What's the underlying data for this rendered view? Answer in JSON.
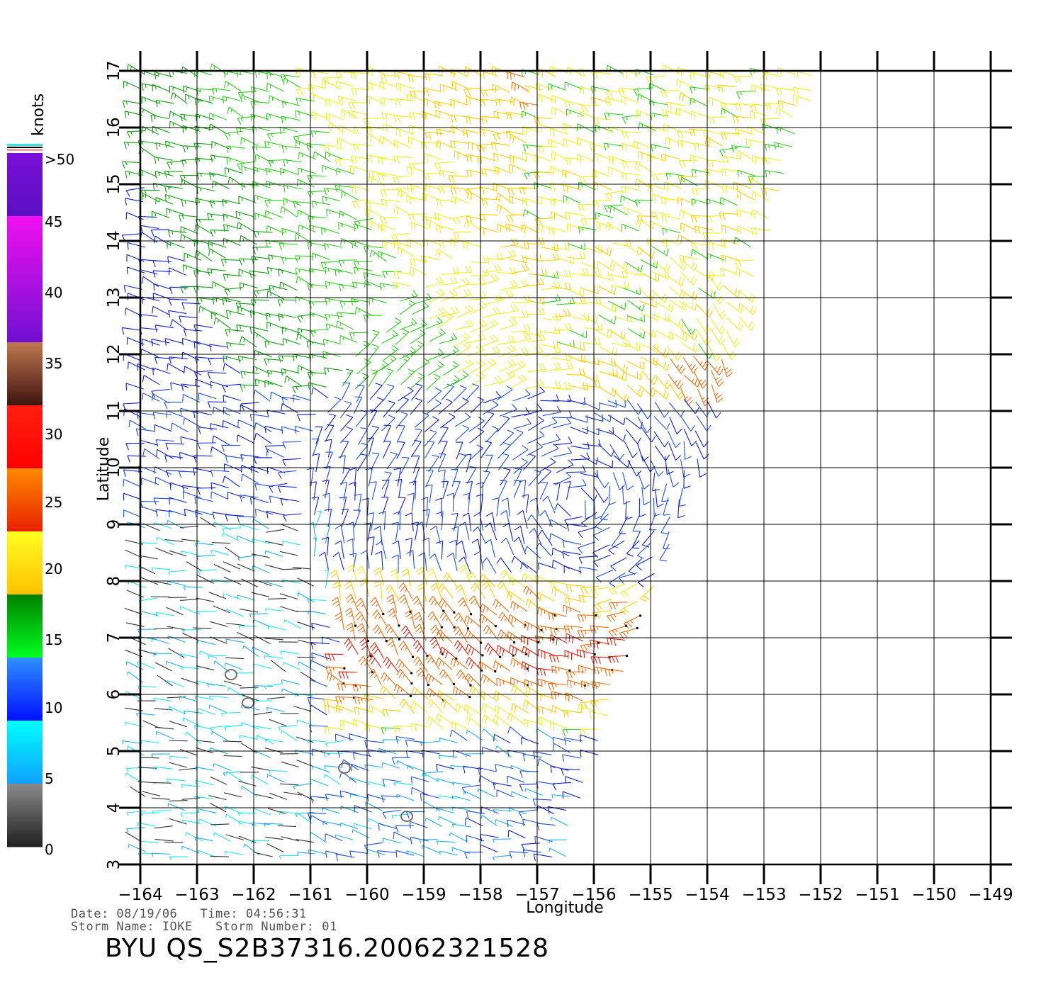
{
  "colorbar": {
    "unit_label": "knots",
    "labels": [
      ">50",
      "45",
      "40",
      "35",
      "30",
      "25",
      "20",
      "15",
      "10",
      "5",
      "0"
    ],
    "bands": [
      {
        "from": 50,
        "to": 55,
        "colors": [
          "#7a10d8",
          "#5a10c0"
        ]
      },
      {
        "from": 40,
        "to": 50,
        "colors": [
          "#f010f0",
          "#7010d0"
        ]
      },
      {
        "from": 35,
        "to": 40,
        "colors": [
          "#c07850",
          "#401410"
        ]
      },
      {
        "from": 30,
        "to": 35,
        "colors": [
          "#ff2010",
          "#ff0000"
        ]
      },
      {
        "from": 25,
        "to": 30,
        "colors": [
          "#ff8a00",
          "#e82000"
        ]
      },
      {
        "from": 20,
        "to": 25,
        "colors": [
          "#ffff20",
          "#ffc000"
        ]
      },
      {
        "from": 15,
        "to": 20,
        "colors": [
          "#008000",
          "#00ff20"
        ]
      },
      {
        "from": 10,
        "to": 15,
        "colors": [
          "#3090ff",
          "#0010ff"
        ]
      },
      {
        "from": 5,
        "to": 10,
        "colors": [
          "#00ffff",
          "#10a0ff"
        ]
      },
      {
        "from": 0,
        "to": 5,
        "colors": [
          "#8a8a8a",
          "#202020"
        ]
      }
    ]
  },
  "axes": {
    "x_title": "Longitude",
    "y_title": "Latitude",
    "x_ticks": [
      -164,
      -163,
      -162,
      -161,
      -160,
      -159,
      -158,
      -157,
      -156,
      -155,
      -154,
      -153,
      -152,
      -151,
      -150,
      -149
    ],
    "y_ticks": [
      3,
      4,
      5,
      6,
      7,
      8,
      9,
      10,
      11,
      12,
      13,
      14,
      15,
      16,
      17
    ],
    "x_tick_labels": [
      "−164",
      "−163",
      "−162",
      "−161",
      "−160",
      "−159",
      "−158",
      "−157",
      "−156",
      "−155",
      "−154",
      "−153",
      "−152",
      "−151",
      "−150",
      "−149"
    ],
    "y_tick_labels": [
      "3",
      "4",
      "5",
      "6",
      "7",
      "8",
      "9",
      "10",
      "11",
      "12",
      "13",
      "14",
      "15",
      "16",
      "17"
    ],
    "lon_range": [
      -164,
      -149
    ],
    "lat_range": [
      3,
      17
    ],
    "grid": true
  },
  "swath": {
    "top_lat": 17,
    "bottom_lat": 3,
    "west_lon": -164,
    "east_lon_top": -152,
    "east_lon_bottom": -156.5
  },
  "storm_center": {
    "lon": -156.3,
    "lat": 9.4
  },
  "islands": [
    {
      "lon": -162.4,
      "lat": 6.35
    },
    {
      "lon": -162.1,
      "lat": 5.85
    },
    {
      "lon": -160.4,
      "lat": 4.7
    },
    {
      "lon": -159.3,
      "lat": 3.85
    }
  ],
  "info": {
    "date_line": "Date: 08/19/06   Time: 04:56:31",
    "storm_line": "Storm Name: IOKE   Storm Number: 01",
    "title": "BYU QS_S2B37316.20062321528"
  }
}
